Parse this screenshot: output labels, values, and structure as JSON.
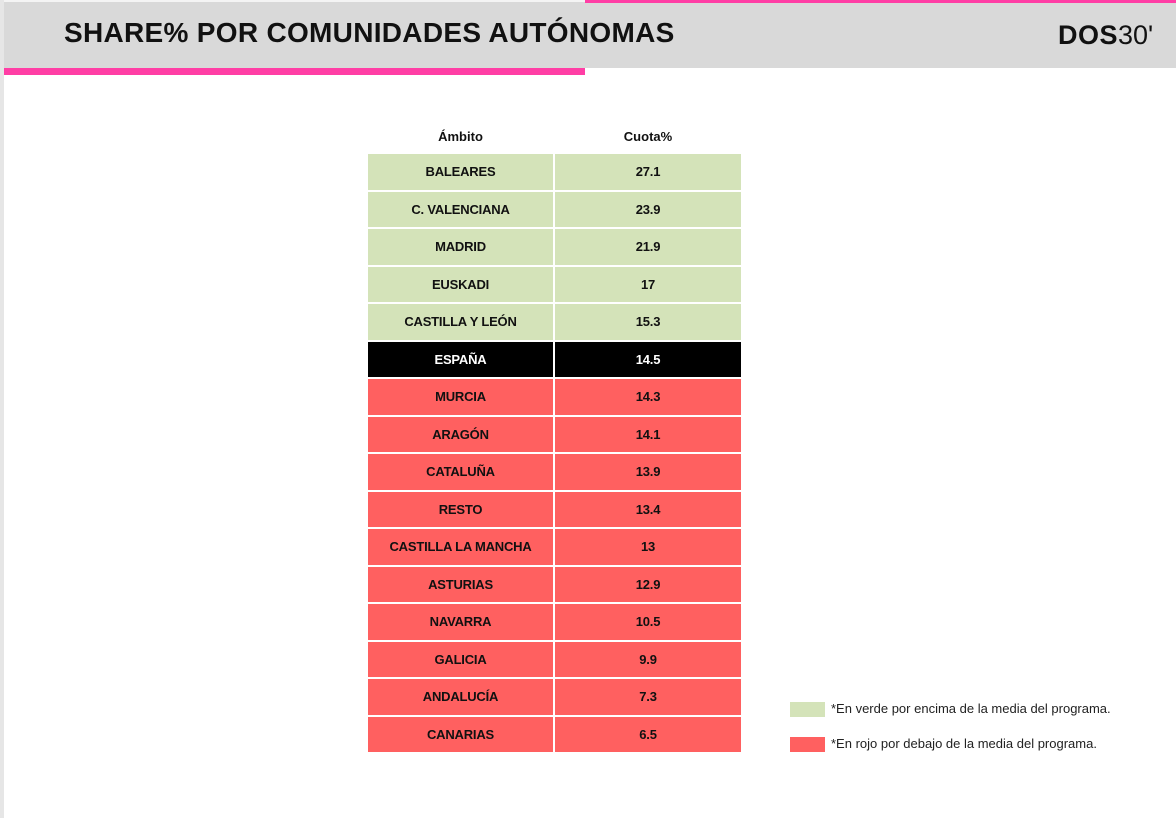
{
  "header": {
    "title": "SHARE% POR COMUNIDADES AUTÓNOMAS",
    "logo_bold": "DOS",
    "logo_light": "30'"
  },
  "colors": {
    "above": "#d4e3b9",
    "national": "#000000",
    "below": "#ff6060",
    "accent": "#ff3ea5"
  },
  "table": {
    "columns": [
      "Ámbito",
      "Cuota%"
    ],
    "rows": [
      {
        "region": "BALEARES",
        "share": "27.1",
        "status": "above"
      },
      {
        "region": "C. VALENCIANA",
        "share": "23.9",
        "status": "above"
      },
      {
        "region": "MADRID",
        "share": "21.9",
        "status": "above"
      },
      {
        "region": "EUSKADI",
        "share": "17",
        "status": "above"
      },
      {
        "region": "CASTILLA Y LEÓN",
        "share": "15.3",
        "status": "above"
      },
      {
        "region": "ESPAÑA",
        "share": "14.5",
        "status": "national"
      },
      {
        "region": "MURCIA",
        "share": "14.3",
        "status": "below"
      },
      {
        "region": "ARAGÓN",
        "share": "14.1",
        "status": "below"
      },
      {
        "region": "CATALUÑA",
        "share": "13.9",
        "status": "below"
      },
      {
        "region": "RESTO",
        "share": "13.4",
        "status": "below"
      },
      {
        "region": "CASTILLA LA MANCHA",
        "share": "13",
        "status": "below"
      },
      {
        "region": "ASTURIAS",
        "share": "12.9",
        "status": "below"
      },
      {
        "region": "NAVARRA",
        "share": "10.5",
        "status": "below"
      },
      {
        "region": "GALICIA",
        "share": "9.9",
        "status": "below"
      },
      {
        "region": "ANDALUCÍA",
        "share": "7.3",
        "status": "below"
      },
      {
        "region": "CANARIAS",
        "share": "6.5",
        "status": "below"
      }
    ]
  },
  "legend": {
    "green_text": "*En verde por encima de la media del programa.",
    "red_text": "*En rojo por debajo de la media del programa."
  }
}
